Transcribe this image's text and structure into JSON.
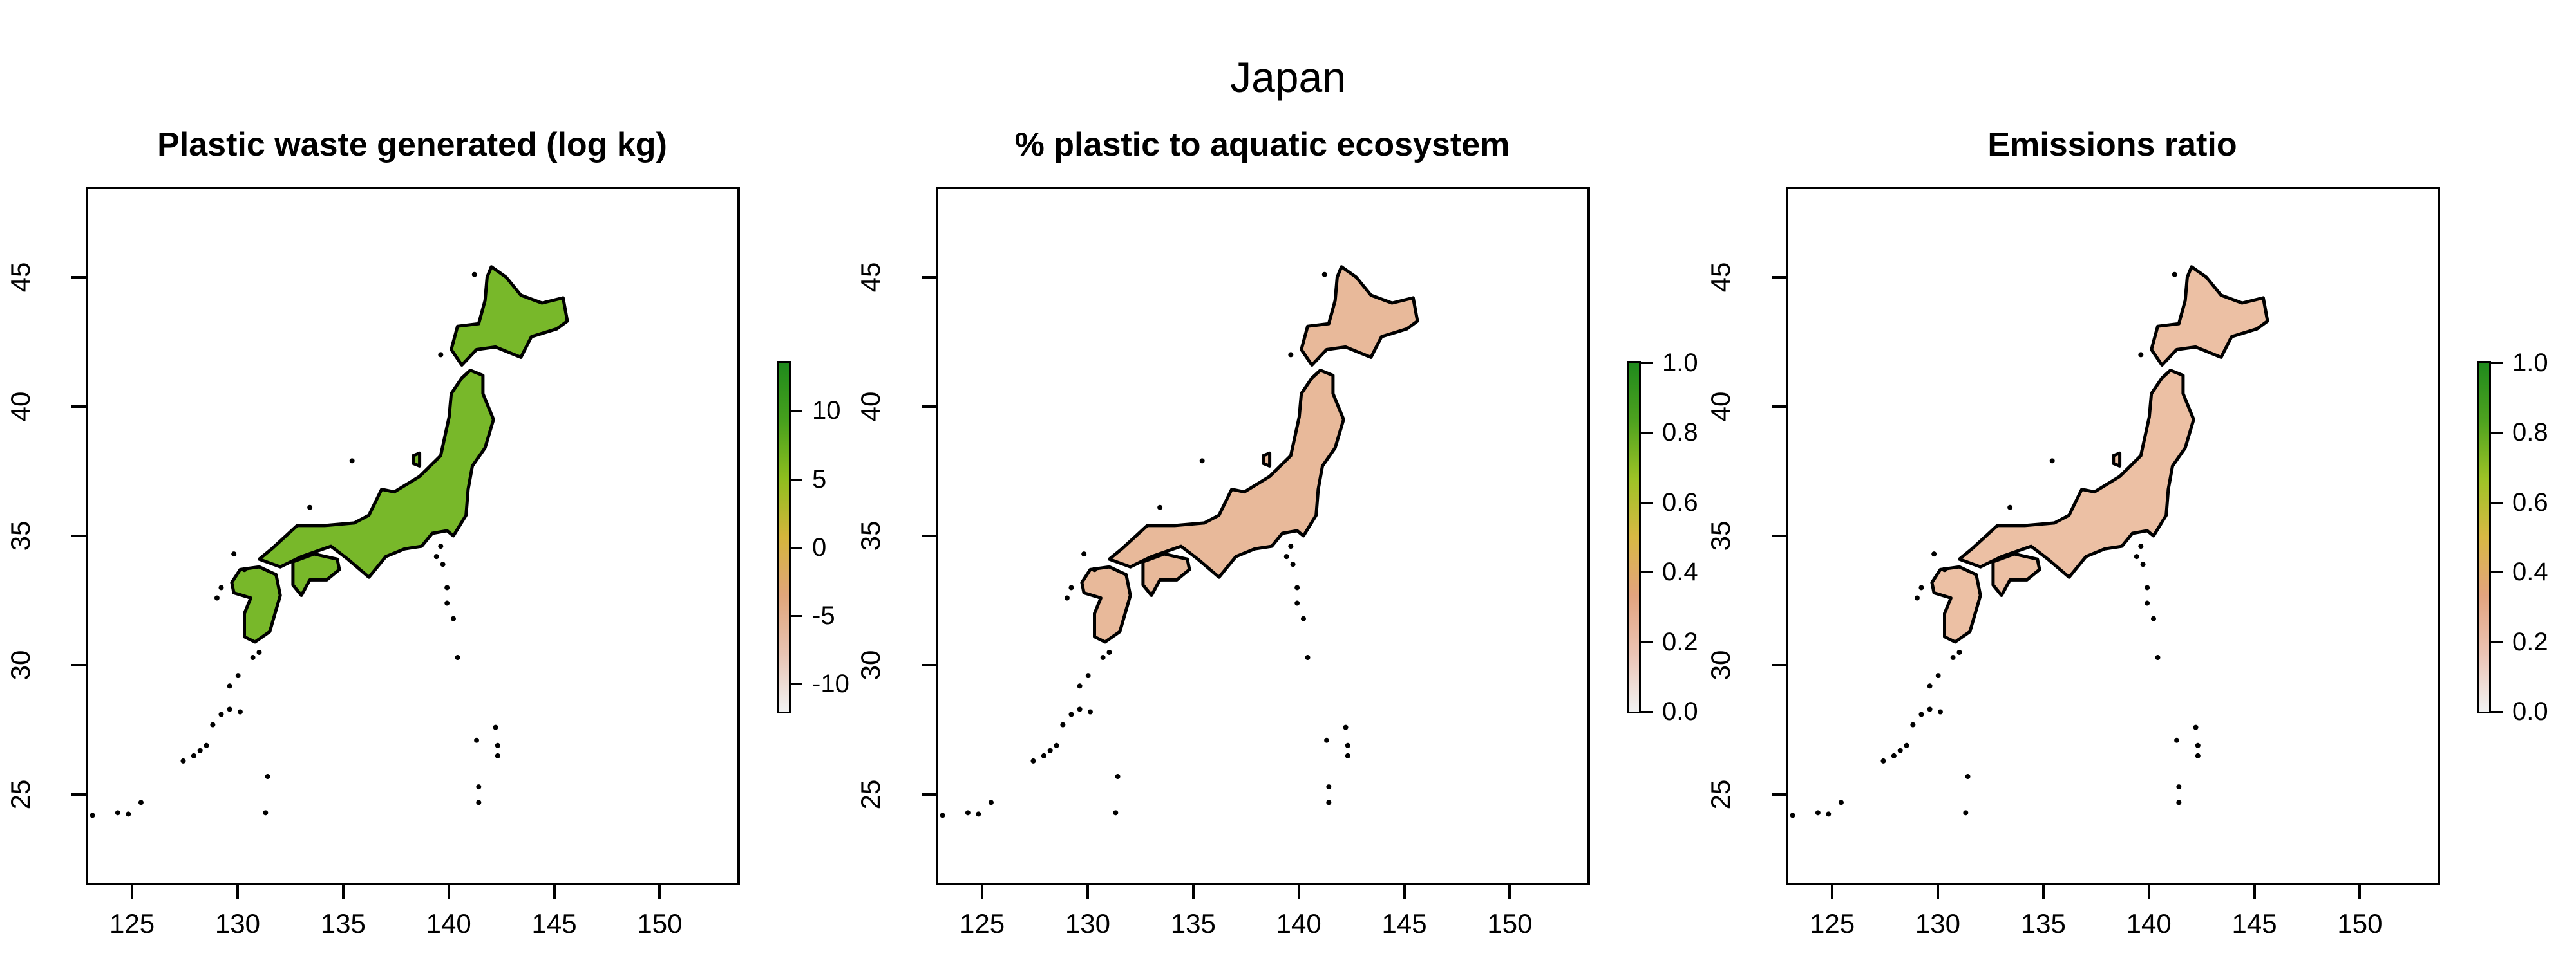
{
  "main_title": "Japan",
  "x_ticks": [
    125,
    130,
    135,
    140,
    145,
    150
  ],
  "y_ticks": [
    25,
    30,
    35,
    40,
    45
  ],
  "x_range": [
    122.8,
    153.8
  ],
  "y_range": [
    21.5,
    48.5
  ],
  "panels": [
    {
      "title": "Plastic waste generated (log kg)",
      "legend": {
        "ticks": [
          "10",
          "5",
          "0",
          "-5",
          "-10"
        ],
        "tick_values": [
          10,
          5,
          0,
          -5,
          -10
        ],
        "range": [
          -12,
          13.5
        ],
        "colors": [
          "#f2f2f2",
          "#e8c3b2",
          "#e0a57a",
          "#d4b43c",
          "#8fbe1e",
          "#47a01d",
          "#1f8a1c"
        ]
      },
      "fill": "#78b82a"
    },
    {
      "title": "% plastic to aquatic ecosystem",
      "legend": {
        "ticks": [
          "1.0",
          "0.8",
          "0.6",
          "0.4",
          "0.2",
          "0.0"
        ],
        "tick_values": [
          1.0,
          0.8,
          0.6,
          0.4,
          0.2,
          0.0
        ],
        "range": [
          0,
          1
        ],
        "colors": [
          "#f2f2f2",
          "#ebc3b4",
          "#e2a37e",
          "#d8b844",
          "#9ec226",
          "#4ea21f",
          "#1f8a1c"
        ]
      },
      "fill": "#e8b99a"
    },
    {
      "title": "Emissions ratio",
      "legend": {
        "ticks": [
          "1.0",
          "0.8",
          "0.6",
          "0.4",
          "0.2",
          "0.0"
        ],
        "tick_values": [
          1.0,
          0.8,
          0.6,
          0.4,
          0.2,
          0.0
        ],
        "range": [
          0,
          1
        ],
        "colors": [
          "#f2f2f2",
          "#ebc3b4",
          "#e2a37e",
          "#d8b844",
          "#9ec226",
          "#4ea21f",
          "#1f8a1c"
        ]
      },
      "fill": "#ecc0a4"
    }
  ]
}
